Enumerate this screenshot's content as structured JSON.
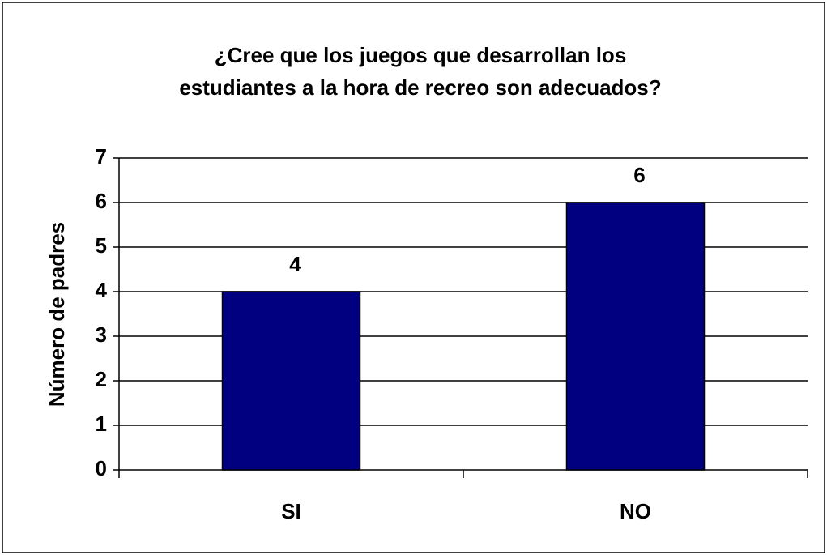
{
  "chart_data": {
    "type": "bar",
    "title": [
      "¿Cree que los juegos que desarrollan los",
      "estudiantes a la hora de recreo son adecuados?"
    ],
    "y_label": "Número de padres",
    "categories": [
      "SI",
      "NO"
    ],
    "values": [
      4,
      6
    ],
    "color": "#000080",
    "ylim": [
      0,
      7
    ],
    "yticks": [
      0,
      1,
      2,
      3,
      4,
      5,
      6,
      7
    ],
    "grid": true
  }
}
